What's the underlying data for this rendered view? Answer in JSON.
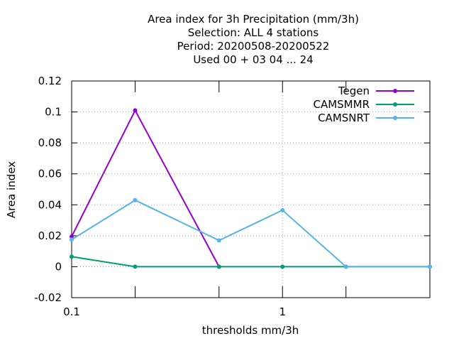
{
  "chart_data": {
    "type": "line",
    "title_lines": [
      "Area index  for 3h Precipitation (mm/3h)",
      "Selection: ALL      4 stations",
      "Period: 20200508-20200522",
      "Used  00 + 03 04 ... 24"
    ],
    "xlabel": "thresholds mm/3h",
    "ylabel": "Area index",
    "x_scale": "log",
    "xlim": [
      0.1,
      5
    ],
    "ylim": [
      -0.02,
      0.12
    ],
    "x_tick_labels": [
      {
        "value": 0.1,
        "label": "0.1"
      },
      {
        "value": 1,
        "label": "1"
      }
    ],
    "x_minor_ticks": [
      0.2,
      0.5,
      2
    ],
    "y_ticks": [
      {
        "value": -0.02,
        "label": "-0.02"
      },
      {
        "value": 0,
        "label": "0"
      },
      {
        "value": 0.02,
        "label": "0.02"
      },
      {
        "value": 0.04,
        "label": "0.04"
      },
      {
        "value": 0.06,
        "label": "0.06"
      },
      {
        "value": 0.08,
        "label": "0.08"
      },
      {
        "value": 0.1,
        "label": "0.1"
      },
      {
        "value": 0.12,
        "label": "0.12"
      }
    ],
    "grid": true,
    "legend_position": "top-right",
    "series": [
      {
        "name": "Tegen",
        "color": "#9400d3",
        "points": [
          [
            0.1,
            0.0195
          ],
          [
            0.2,
            0.101
          ],
          [
            0.5,
            0.0
          ]
        ]
      },
      {
        "name": "CAMSMMR",
        "color": "#009e73",
        "points": [
          [
            0.1,
            0.0065
          ],
          [
            0.2,
            0.0
          ],
          [
            0.5,
            0.0
          ],
          [
            1,
            0.0
          ],
          [
            2,
            0.0
          ],
          [
            5,
            0.0
          ]
        ]
      },
      {
        "name": "CAMSNRT",
        "color": "#56b4e9",
        "points": [
          [
            0.1,
            0.0175
          ],
          [
            0.2,
            0.043
          ],
          [
            0.5,
            0.017
          ],
          [
            1,
            0.0365
          ],
          [
            2,
            0.0
          ],
          [
            5,
            0.0
          ]
        ]
      }
    ]
  }
}
